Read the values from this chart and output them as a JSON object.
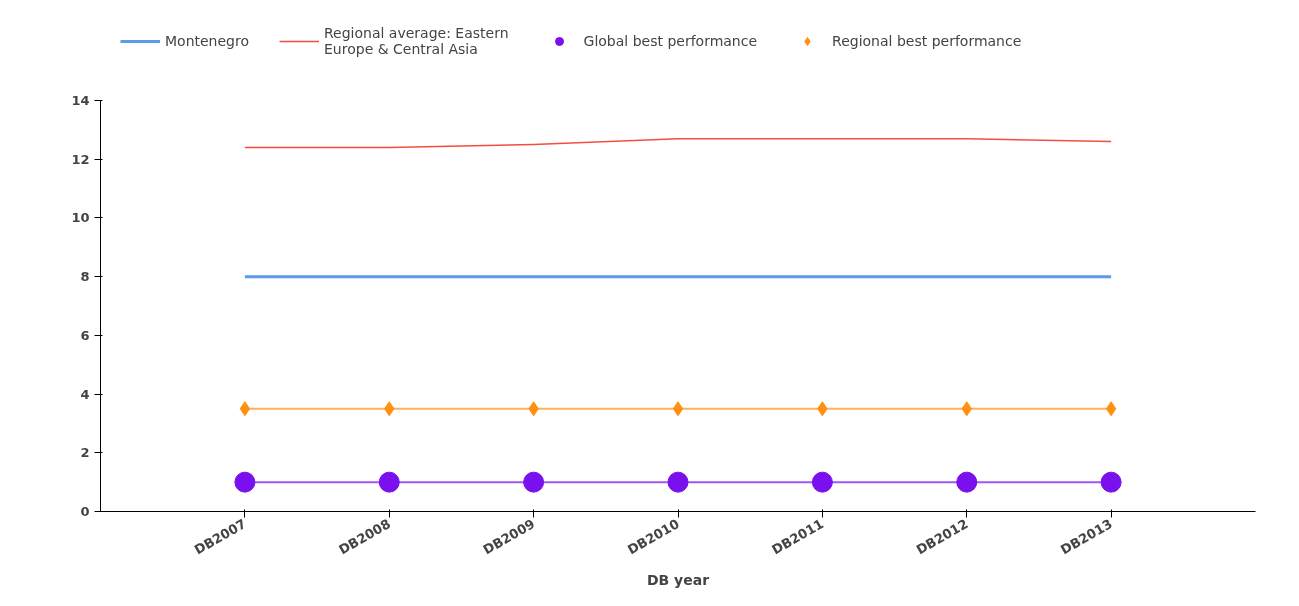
{
  "chart_data": {
    "type": "line",
    "xlabel": "DB year",
    "categories": [
      "DB2007",
      "DB2008",
      "DB2009",
      "DB2010",
      "DB2011",
      "DB2012",
      "DB2013"
    ],
    "ylim": [
      0,
      14
    ],
    "yticks": [
      0,
      2,
      4,
      6,
      8,
      10,
      12,
      14
    ],
    "grid": false,
    "legend": "top",
    "marker": "none",
    "line_style": "solid",
    "series": [
      {
        "name": "Montenegro",
        "color": "#4a90e2",
        "values": [
          8,
          8,
          8,
          8,
          8,
          8,
          8
        ]
      },
      {
        "name": "Regional average: Eastern\nEurope & Central Asia",
        "color": "#f03c28",
        "values": [
          12.4,
          12.4,
          12.5,
          12.7,
          12.7,
          12.7,
          12.6
        ]
      },
      {
        "name": "Global best performance",
        "color": "#7a10ee",
        "marker": "circle",
        "values": [
          1,
          1,
          1,
          1,
          1,
          1,
          1
        ]
      },
      {
        "name": "Regional best performance",
        "color": "#ff9010",
        "marker": "diamond",
        "values": [
          3.5,
          3.5,
          3.5,
          3.5,
          3.5,
          3.5,
          3.5
        ]
      }
    ]
  }
}
